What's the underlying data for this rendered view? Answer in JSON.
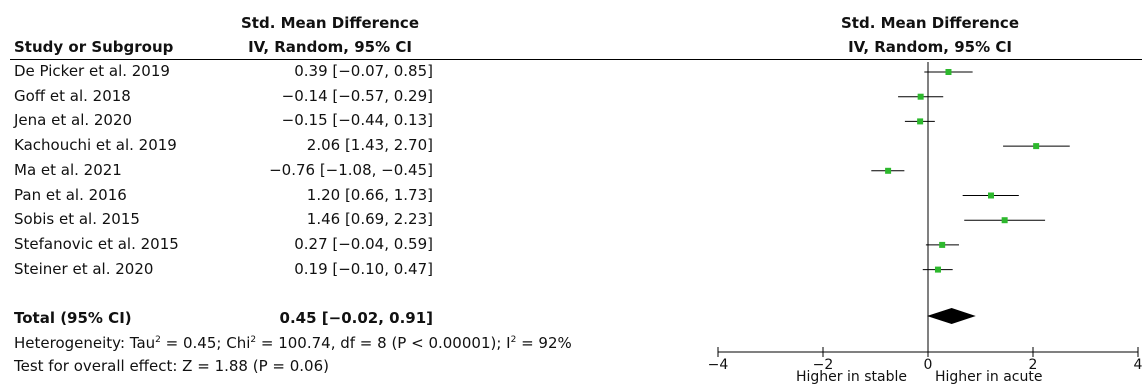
{
  "header": {
    "col_study": "Study or Subgroup",
    "col_effect_line1": "Std. Mean Difference",
    "col_effect_line2": "IV, Random, 95% CI",
    "plot_line1": "Std. Mean Difference",
    "plot_line2": "IV, Random, 95% CI"
  },
  "studies": [
    {
      "name": "De Picker et al. 2019",
      "ci_text": "0.39 [−0.07, 0.85]"
    },
    {
      "name": "Goff et al. 2018",
      "ci_text": "−0.14 [−0.57, 0.29]"
    },
    {
      "name": "Jena et al. 2020",
      "ci_text": "−0.15 [−0.44, 0.13]"
    },
    {
      "name": "Kachouchi et al. 2019",
      "ci_text": "2.06 [1.43, 2.70]"
    },
    {
      "name": "Ma et al. 2021",
      "ci_text": "−0.76 [−1.08, −0.45]"
    },
    {
      "name": "Pan et al. 2016",
      "ci_text": "1.20 [0.66, 1.73]"
    },
    {
      "name": "Sobis et al. 2015",
      "ci_text": "1.46 [0.69, 2.23]"
    },
    {
      "name": "Stefanovic et al. 2015",
      "ci_text": "0.27 [−0.04, 0.59]"
    },
    {
      "name": "Steiner et al. 2020",
      "ci_text": "0.19 [−0.10, 0.47]"
    }
  ],
  "total": {
    "label": "Total (95% CI)",
    "ci_text": "0.45 [−0.02, 0.91]"
  },
  "heterogeneity": {
    "prefix": "Heterogeneity: Tau",
    "tau_exp": "2",
    "mid1": " = 0.45; Chi",
    "chi_exp": "2",
    "mid2": " = 100.74, df = 8 (P < 0.00001); I",
    "i_exp": "2",
    "suffix": " = 92%"
  },
  "overall_effect": "Test for overall effect: Z = 1.88 (P = 0.06)",
  "axis": {
    "left_label": "Higher in stable",
    "right_label": "Higher in acute"
  },
  "colors": {
    "point": "#2db82d",
    "diamond": "#000000",
    "lines": "#000000"
  },
  "chart_data": {
    "type": "forest",
    "xlim": [
      -4,
      4
    ],
    "xticks": [
      -4,
      -2,
      0,
      2,
      4
    ],
    "tick_labels": [
      "−4",
      "−2",
      "0",
      "2",
      "4"
    ],
    "series": [
      {
        "x": 0.39,
        "lo": -0.07,
        "hi": 0.85
      },
      {
        "x": -0.14,
        "lo": -0.57,
        "hi": 0.29
      },
      {
        "x": -0.15,
        "lo": -0.44,
        "hi": 0.13
      },
      {
        "x": 2.06,
        "lo": 1.43,
        "hi": 2.7
      },
      {
        "x": -0.76,
        "lo": -1.08,
        "hi": -0.45
      },
      {
        "x": 1.2,
        "lo": 0.66,
        "hi": 1.73
      },
      {
        "x": 1.46,
        "lo": 0.69,
        "hi": 2.23
      },
      {
        "x": 0.27,
        "lo": -0.04,
        "hi": 0.59
      },
      {
        "x": 0.19,
        "lo": -0.1,
        "hi": 0.47
      }
    ],
    "pooled": {
      "x": 0.45,
      "lo": -0.02,
      "hi": 0.91
    }
  }
}
